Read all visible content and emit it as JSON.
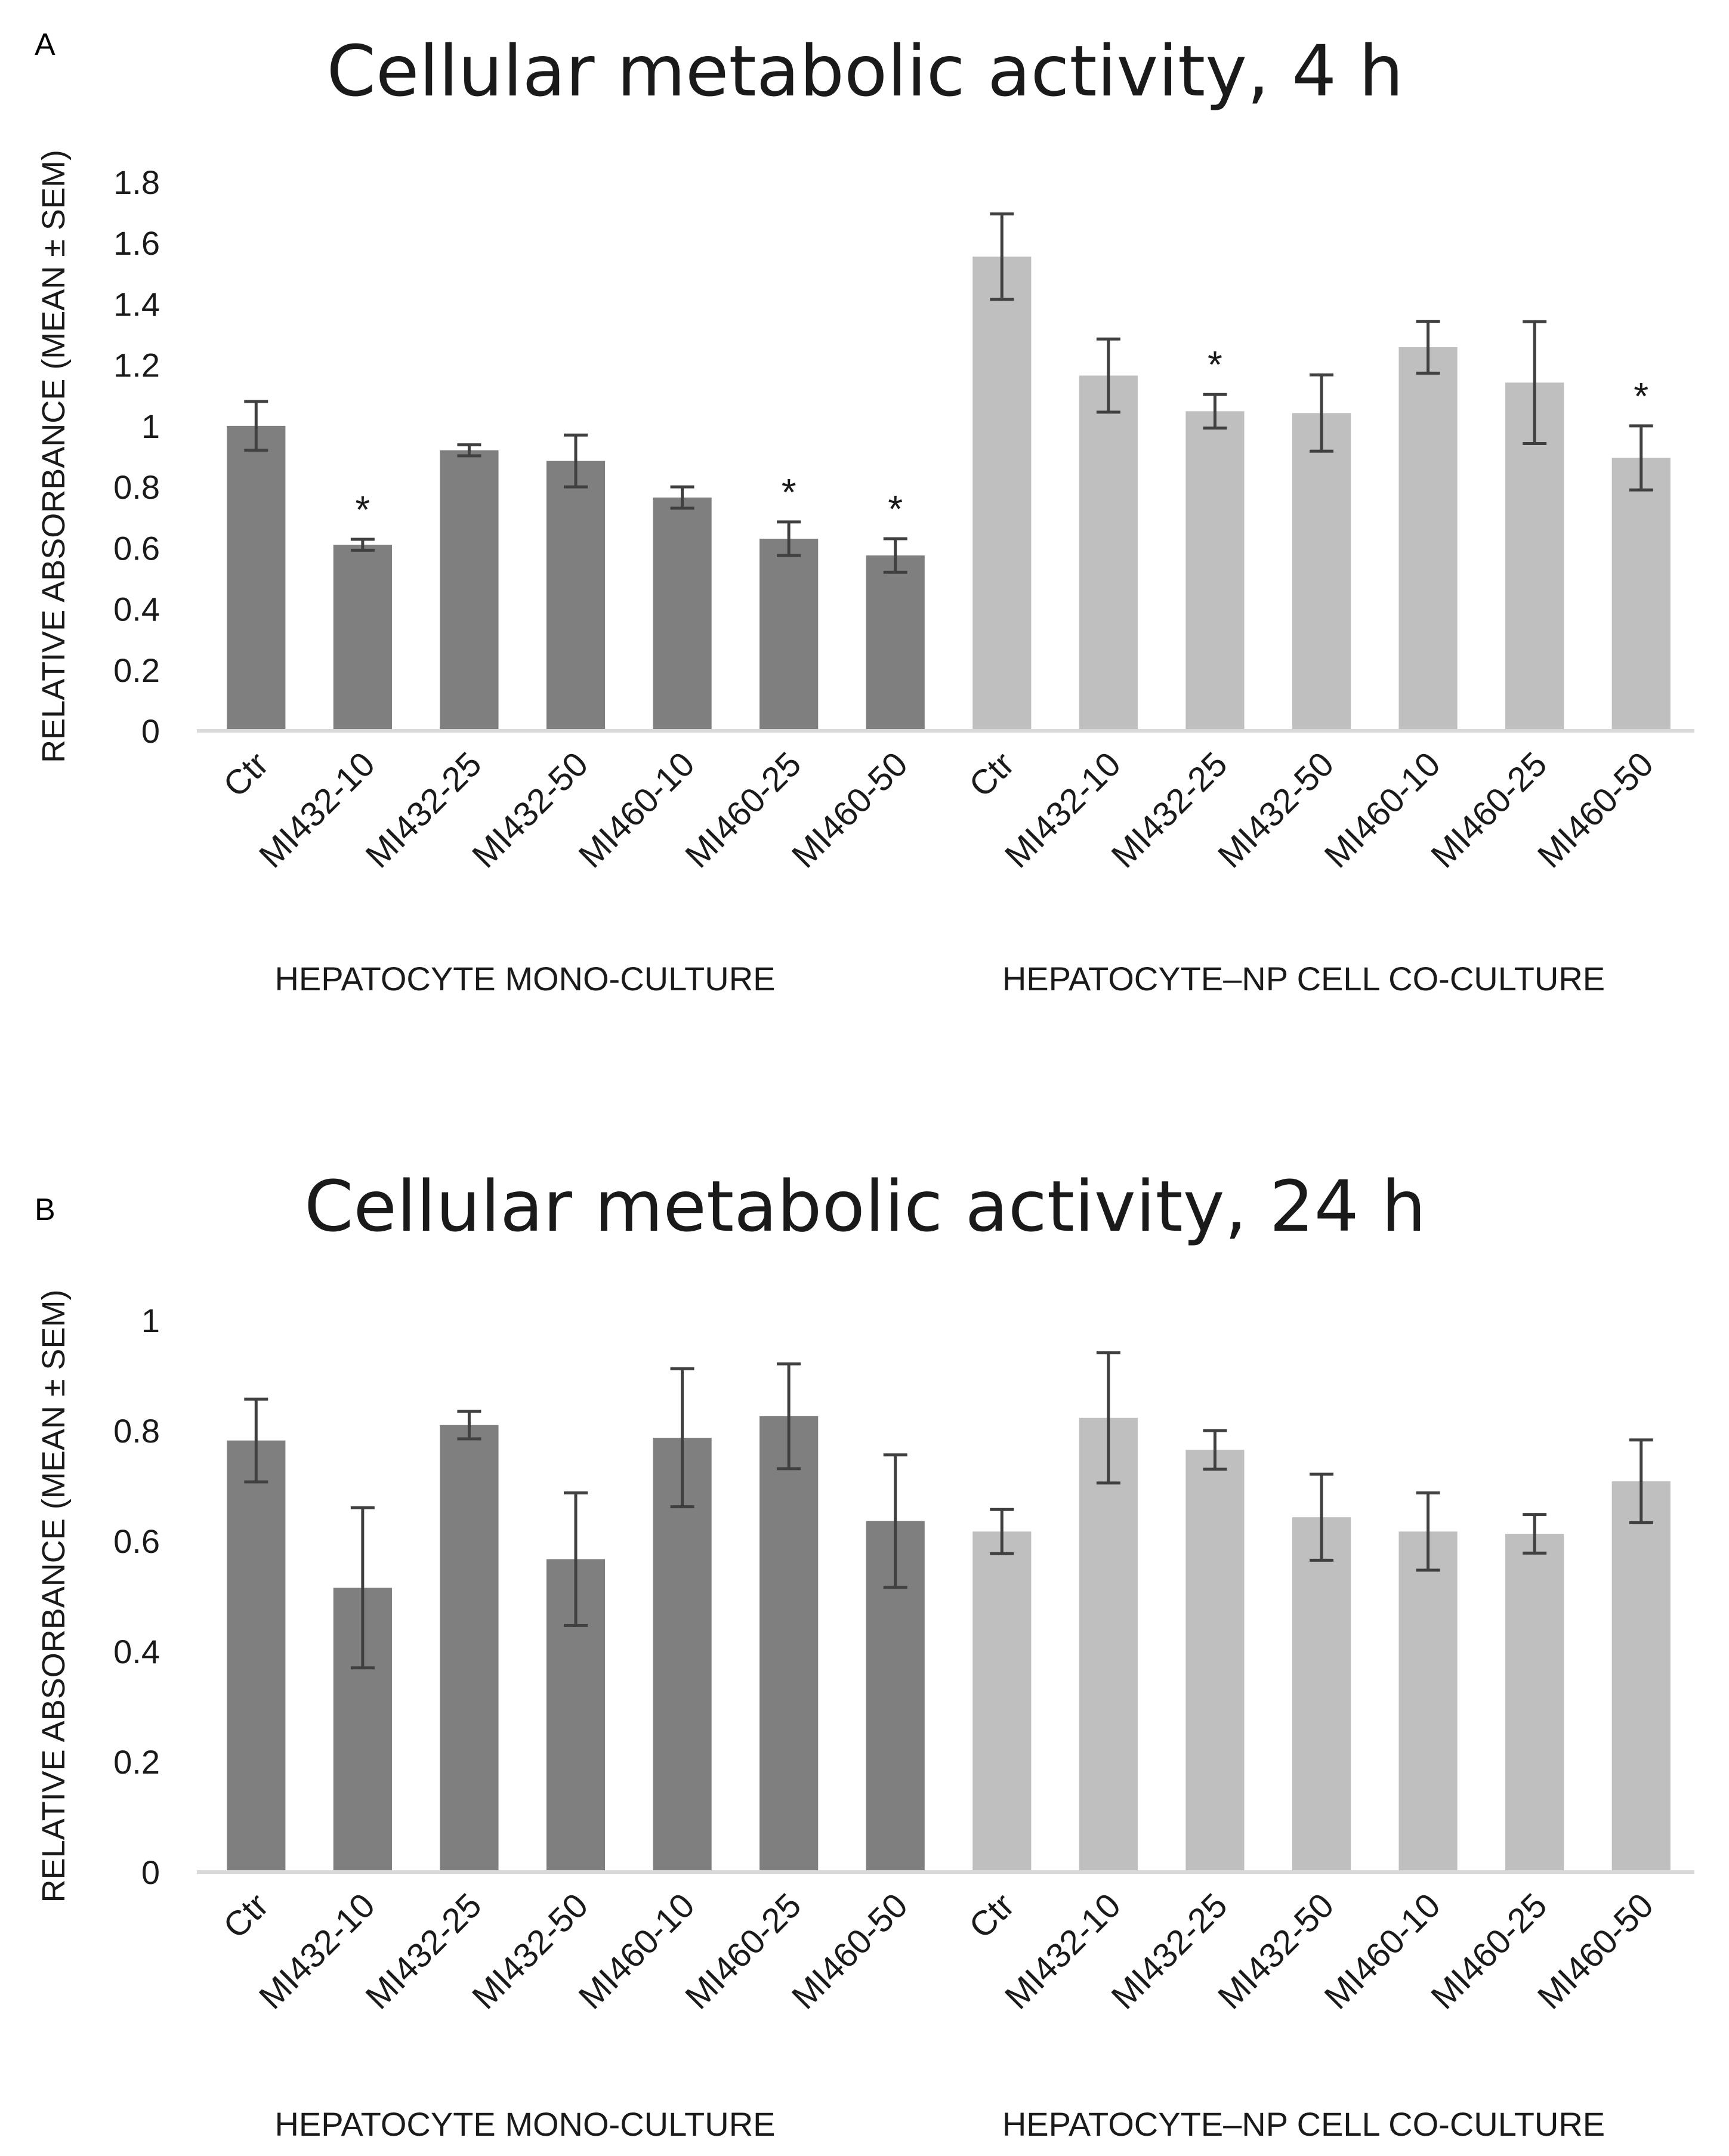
{
  "chart_data": [
    {
      "type": "bar",
      "panel_label": "A",
      "title": "Cellular metabolic activity, 4 h",
      "ylabel": "RELATIVE ABSORBANCE (MEAN ± SEM)",
      "xlabel": "",
      "ylim": [
        0,
        1.8
      ],
      "yticks": [
        0,
        0.2,
        0.4,
        0.6,
        0.8,
        1,
        1.2,
        1.4,
        1.6,
        1.8
      ],
      "ytick_labels": [
        "0",
        "0.2",
        "0.4",
        "0.6",
        "0.8",
        "1",
        "1.2",
        "1.4",
        "1.6",
        "1.8"
      ],
      "grid": false,
      "groups": [
        {
          "name": "HEPATOCYTE MONO-CULTURE",
          "color": "#7f7f7f",
          "categories": [
            "Ctr",
            "MI432-10",
            "MI432-25",
            "MI432-50",
            "MI460-10",
            "MI460-25",
            "MI460-50"
          ],
          "values": [
            1.0,
            0.61,
            0.92,
            0.885,
            0.765,
            0.63,
            0.575
          ],
          "sem": [
            0.08,
            0.018,
            0.018,
            0.085,
            0.035,
            0.055,
            0.055
          ],
          "significant": [
            false,
            true,
            false,
            false,
            false,
            true,
            true
          ]
        },
        {
          "name": "HEPATOCYTE–NP CELL CO-CULTURE",
          "color": "#bfbfbf",
          "categories": [
            "Ctr",
            "MI432-10",
            "MI432-25",
            "MI432-50",
            "MI460-10",
            "MI460-25",
            "MI460-50"
          ],
          "values": [
            1.555,
            1.165,
            1.048,
            1.042,
            1.258,
            1.142,
            0.895
          ],
          "sem": [
            0.14,
            0.12,
            0.055,
            0.125,
            0.085,
            0.2,
            0.105
          ],
          "significant": [
            false,
            false,
            true,
            false,
            false,
            false,
            true
          ]
        }
      ],
      "significance_marker": "*"
    },
    {
      "type": "bar",
      "panel_label": "B",
      "title": "Cellular metabolic activity, 24 h",
      "ylabel": "RELATIVE ABSORBANCE (MEAN ± SEM)",
      "xlabel": "",
      "ylim": [
        0,
        1
      ],
      "yticks": [
        0,
        0.2,
        0.4,
        0.6,
        0.8,
        1
      ],
      "ytick_labels": [
        "0",
        "0.2",
        "0.4",
        "0.6",
        "0.8",
        "1"
      ],
      "grid": false,
      "groups": [
        {
          "name": "HEPATOCYTE MONO-CULTURE",
          "color": "#7f7f7f",
          "categories": [
            "Ctr",
            "MI432-10",
            "MI432-25",
            "MI432-50",
            "MI460-10",
            "MI460-25",
            "MI460-50"
          ],
          "values": [
            0.782,
            0.515,
            0.81,
            0.567,
            0.787,
            0.826,
            0.636
          ],
          "sem": [
            0.075,
            0.145,
            0.025,
            0.12,
            0.125,
            0.095,
            0.12
          ],
          "significant": [
            false,
            false,
            false,
            false,
            false,
            false,
            false
          ]
        },
        {
          "name": "HEPATOCYTE–NP CELL CO-CULTURE",
          "color": "#bfbfbf",
          "categories": [
            "Ctr",
            "MI432-10",
            "MI432-25",
            "MI432-50",
            "MI460-10",
            "MI460-25",
            "MI460-50"
          ],
          "values": [
            0.617,
            0.823,
            0.765,
            0.643,
            0.617,
            0.613,
            0.708
          ],
          "sem": [
            0.04,
            0.118,
            0.035,
            0.078,
            0.07,
            0.035,
            0.075
          ],
          "significant": [
            false,
            false,
            false,
            false,
            false,
            false,
            false
          ]
        }
      ],
      "significance_marker": "*"
    }
  ]
}
